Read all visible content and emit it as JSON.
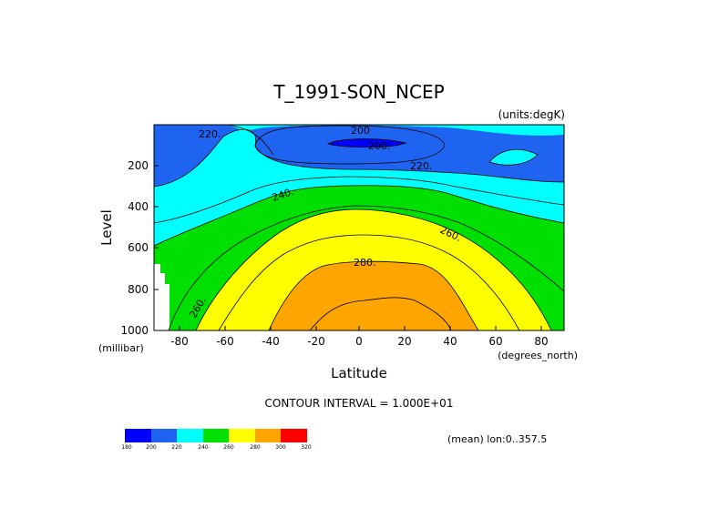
{
  "chart_data": {
    "type": "contour",
    "title": "T_1991-SON_NCEP",
    "units_label": "(units:degK)",
    "xlabel": "Latitude",
    "ylabel": "Level",
    "x_unit_label": "(degrees_north)",
    "y_unit_label": "(millibar)",
    "xlim": [
      -90,
      90
    ],
    "ylim": [
      0,
      1000
    ],
    "y_reversed": true,
    "x_ticks": [
      "-80",
      "-60",
      "-40",
      "-20",
      "0",
      "20",
      "40",
      "60",
      "80"
    ],
    "y_ticks": [
      "200",
      "400",
      "600",
      "800",
      "1000"
    ],
    "contour_interval_text": "CONTOUR INTERVAL = 1.000E+01",
    "mean_note": "(mean) lon:0..357.5",
    "contour_labels": [
      "200",
      "200.",
      "220.",
      "220.",
      "240.",
      "260.",
      "260.",
      "280."
    ],
    "colorbar": {
      "ticks": [
        "180",
        "200",
        "220",
        "240",
        "260",
        "280",
        "300",
        "320"
      ],
      "colors": [
        "#0000ff",
        "#1e64f0",
        "#00ffff",
        "#00e000",
        "#ffff00",
        "#ffa500",
        "#ff0000"
      ]
    },
    "levels": [
      180,
      200,
      220,
      240,
      260,
      280,
      300,
      320
    ],
    "grid": false
  }
}
